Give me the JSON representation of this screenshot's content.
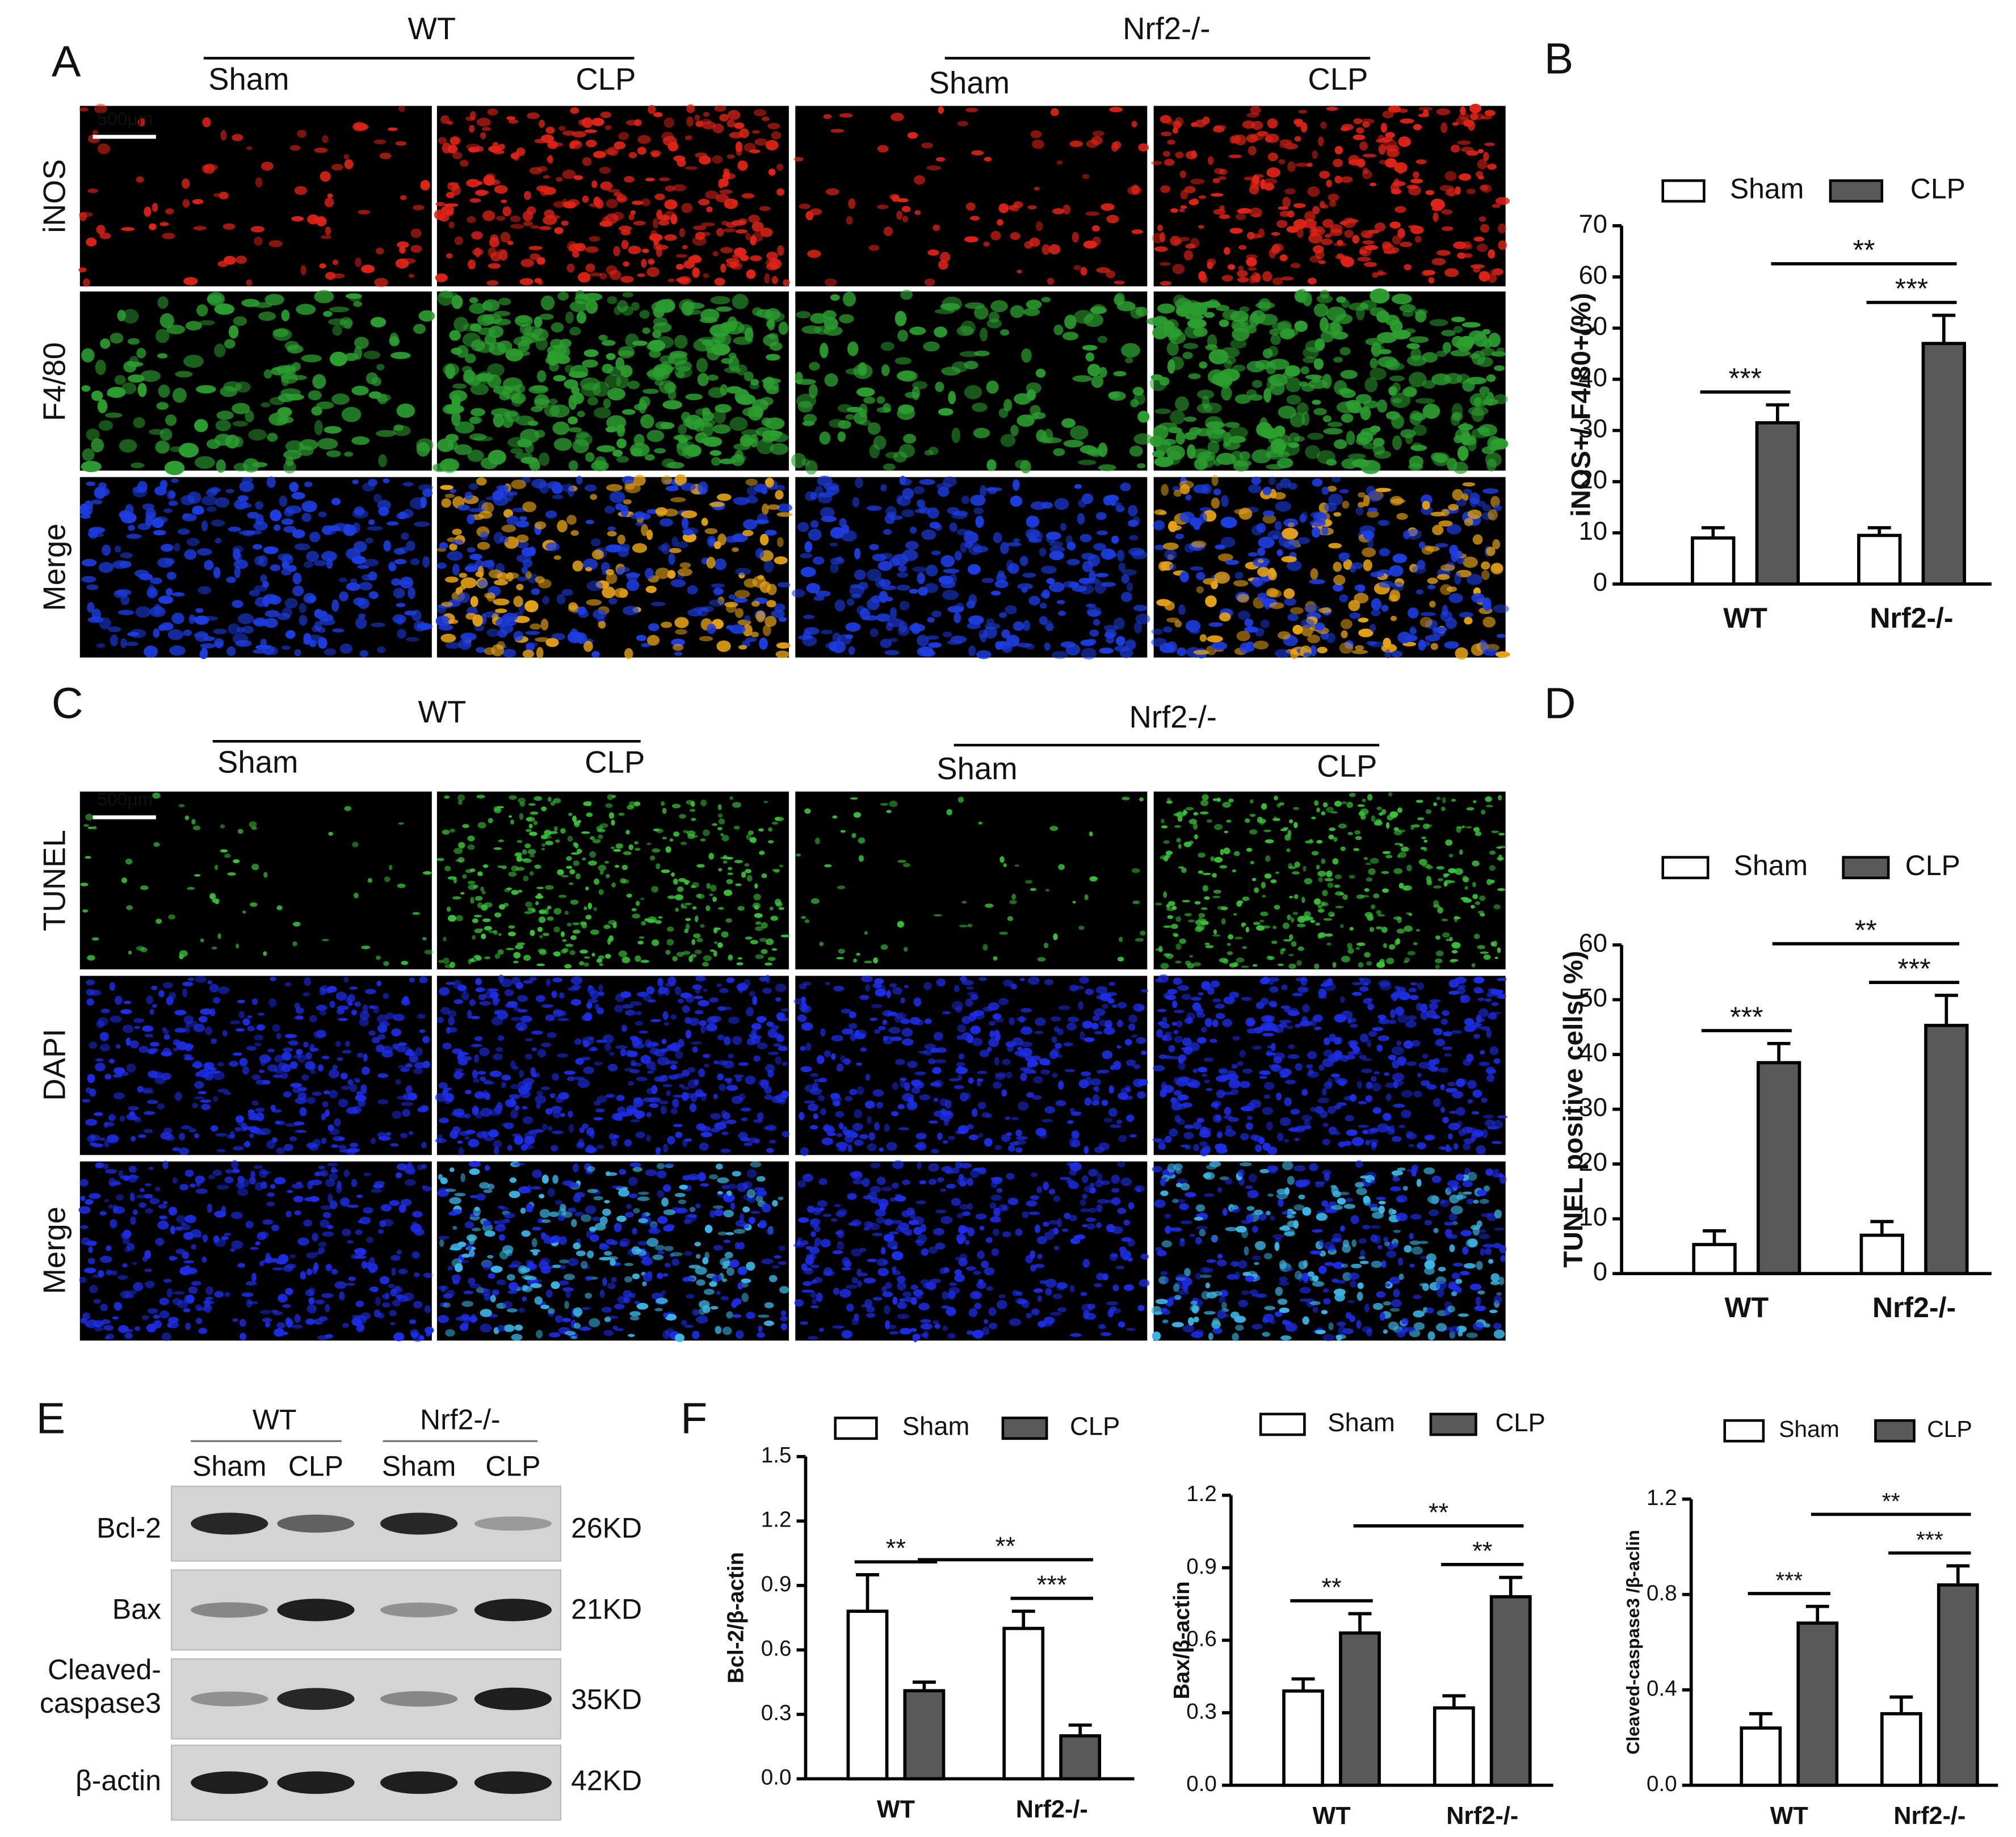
{
  "panels": {
    "A": {
      "label": "A",
      "groups": [
        "WT",
        "Nrf2-/-"
      ],
      "columns": [
        "Sham",
        "CLP",
        "Sham",
        "CLP"
      ],
      "rows": [
        "iNOS",
        "F4/80",
        "Merge"
      ],
      "scale_bar": "500μm"
    },
    "B": {
      "label": "B"
    },
    "C": {
      "label": "C",
      "groups": [
        "WT",
        "Nrf2-/-"
      ],
      "columns": [
        "Sham",
        "CLP",
        "Sham",
        "CLP"
      ],
      "rows": [
        "TUNEL",
        "DAPI",
        "Merge"
      ],
      "scale_bar": "500μm"
    },
    "D": {
      "label": "D"
    },
    "E": {
      "label": "E",
      "groups": [
        "WT",
        "Nrf2-/-"
      ],
      "columns": [
        "Sham",
        "CLP",
        "Sham",
        "CLP"
      ],
      "rows": [
        {
          "name": [
            "Bcl-2"
          ],
          "size": "26KD"
        },
        {
          "name": [
            "Bax"
          ],
          "size": "21KD"
        },
        {
          "name": [
            "Cleaved-",
            "caspase3"
          ],
          "size": "35KD"
        },
        {
          "name": [
            "β-actin"
          ],
          "size": "42KD"
        }
      ]
    },
    "F": {
      "label": "F"
    }
  },
  "chart_data": [
    {
      "type": "bar",
      "ylabel": "iNOS+/ F4/80+(%)",
      "categories": [
        "WT",
        "Nrf2-/-"
      ],
      "series": [
        {
          "name": "Sham",
          "color": "#ffffff",
          "values": [
            9,
            9.5
          ],
          "errors": [
            2,
            1.5
          ]
        },
        {
          "name": "CLP",
          "color": "#595959",
          "values": [
            31.5,
            47
          ],
          "errors": [
            3.5,
            5.5
          ]
        }
      ],
      "ylim": [
        0,
        70
      ],
      "yticks": [
        0,
        10,
        20,
        30,
        40,
        50,
        60,
        70
      ],
      "annotations": [
        "***",
        "**",
        "***"
      ]
    },
    {
      "type": "bar",
      "ylabel": "TUNEL positive cells( %)",
      "categories": [
        "WT",
        "Nrf2-/-"
      ],
      "series": [
        {
          "name": "Sham",
          "color": "#ffffff",
          "values": [
            5.3,
            7
          ],
          "errors": [
            2.5,
            2.5
          ]
        },
        {
          "name": "CLP",
          "color": "#595959",
          "values": [
            38.5,
            45.3
          ],
          "errors": [
            3.5,
            5.5
          ]
        }
      ],
      "ylim": [
        0,
        60
      ],
      "yticks": [
        0,
        10,
        20,
        30,
        40,
        50,
        60
      ],
      "annotations": [
        "***",
        "**",
        "***"
      ]
    },
    {
      "type": "bar",
      "ylabel": "Bcl-2/β-actin",
      "categories": [
        "WT",
        "Nrf2-/-"
      ],
      "series": [
        {
          "name": "Sham",
          "color": "#ffffff",
          "values": [
            0.78,
            0.7
          ],
          "errors": [
            0.17,
            0.08
          ]
        },
        {
          "name": "CLP",
          "color": "#595959",
          "values": [
            0.41,
            0.2
          ],
          "errors": [
            0.04,
            0.05
          ]
        }
      ],
      "ylim": [
        0,
        1.5
      ],
      "yticks": [
        {
          "value": 0,
          "label": "0.0"
        },
        0.3,
        0.6,
        0.9,
        1.2,
        1.5
      ],
      "annotations": [
        "**",
        "**",
        "***"
      ]
    },
    {
      "type": "bar",
      "ylabel": "Bax/β-actin",
      "categories": [
        "WT",
        "Nrf2-/-"
      ],
      "series": [
        {
          "name": "Sham",
          "color": "#ffffff",
          "values": [
            0.39,
            0.32
          ],
          "errors": [
            0.05,
            0.05
          ]
        },
        {
          "name": "CLP",
          "color": "#595959",
          "values": [
            0.63,
            0.78
          ],
          "errors": [
            0.08,
            0.08
          ]
        }
      ],
      "ylim": [
        0,
        1.2
      ],
      "yticks": [
        {
          "value": 0,
          "label": "0.0"
        },
        0.3,
        0.6,
        0.9,
        1.2
      ],
      "annotations": [
        "**",
        "**",
        "**"
      ]
    },
    {
      "type": "bar",
      "ylabel": "Cleaved-caspase3 /β-aclin",
      "categories": [
        "WT",
        "Nrf2-/-"
      ],
      "series": [
        {
          "name": "Sham",
          "color": "#ffffff",
          "values": [
            0.24,
            0.3
          ],
          "errors": [
            0.06,
            0.07
          ]
        },
        {
          "name": "CLP",
          "color": "#595959",
          "values": [
            0.68,
            0.84
          ],
          "errors": [
            0.07,
            0.08
          ]
        }
      ],
      "ylim": [
        0,
        1.2
      ],
      "yticks": [
        {
          "value": 0,
          "label": "0.0"
        },
        0.4,
        0.8,
        1.2
      ],
      "annotations": [
        "***",
        "**",
        "***"
      ]
    }
  ]
}
